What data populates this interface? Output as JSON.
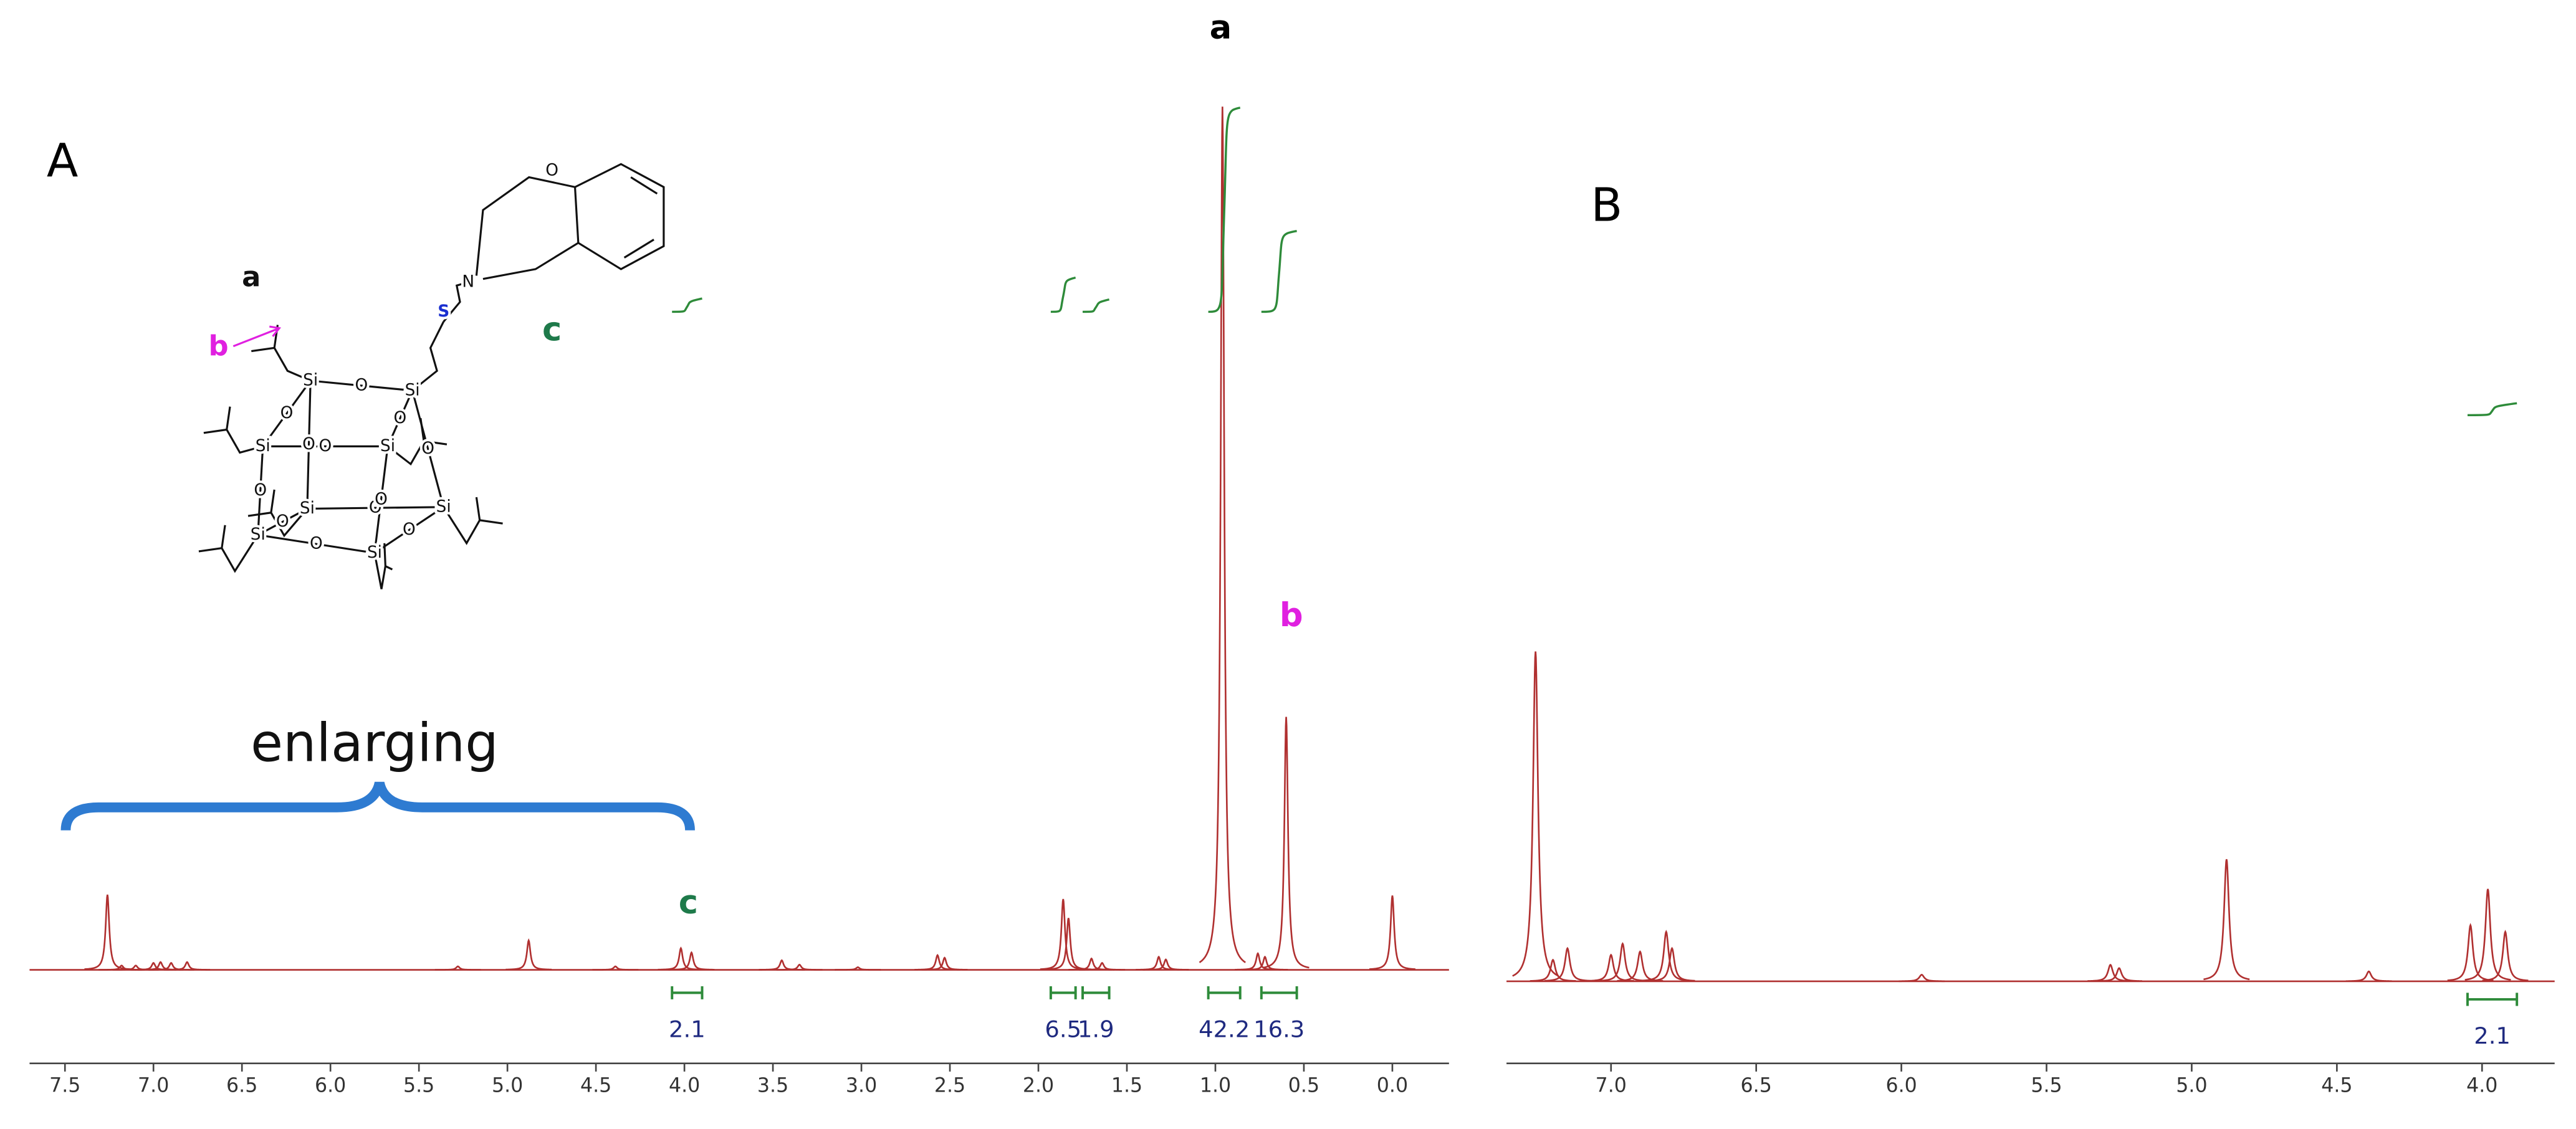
{
  "chart_data": [
    {
      "type": "spectrum",
      "panel_label": "A",
      "color": "#b03030",
      "x": [
        7.26,
        7.18,
        7.1,
        7.0,
        6.96,
        6.9,
        6.81,
        5.28,
        4.88,
        4.39,
        4.02,
        3.96,
        3.45,
        3.35,
        3.02,
        2.57,
        2.53,
        1.86,
        1.83,
        1.7,
        1.64,
        1.32,
        1.28,
        0.96,
        0.76,
        0.72,
        0.6,
        0.0
      ],
      "values": [
        8.7,
        0.5,
        0.5,
        0.8,
        0.9,
        0.8,
        0.9,
        0.4,
        3.4,
        0.4,
        2.5,
        2.0,
        1.1,
        0.6,
        0.3,
        1.7,
        1.4,
        8.2,
        6.0,
        1.3,
        0.8,
        1.5,
        1.2,
        100,
        1.9,
        1.5,
        29.3,
        8.6
      ],
      "xlim": [
        7.7,
        -0.32
      ],
      "xticks": [
        7.5,
        {
          "value": 7,
          "label": "7.0"
        },
        6.5,
        {
          "value": 6,
          "label": "6.0"
        },
        5.5,
        {
          "value": 5,
          "label": "5.0"
        },
        4.5,
        {
          "value": 4,
          "label": "4.0"
        },
        3.5,
        {
          "value": 3,
          "label": "3.0"
        },
        2.5,
        {
          "value": 2,
          "label": "2.0"
        },
        1.5,
        {
          "value": 1,
          "label": "1.0"
        },
        0.5,
        {
          "value": 0,
          "label": "0.0"
        }
      ],
      "ylim": [
        0,
        100
      ],
      "integrals": {
        "color": "#2e8b3a",
        "x": [
          [
            4.07,
            3.9
          ],
          [
            1.93,
            1.79
          ],
          [
            1.75,
            1.6
          ],
          [
            1.04,
            0.86
          ],
          [
            0.74,
            0.54
          ]
        ],
        "values": [
          2.1,
          6.5,
          1.9,
          42.2,
          16.3
        ]
      },
      "peak_labels": [
        "a",
        "b",
        "c"
      ],
      "enlarge_label": "enlarging"
    },
    {
      "type": "spectrum",
      "panel_label": "B",
      "color": "#b03030",
      "x": [
        7.26,
        7.2,
        7.15,
        7.0,
        6.96,
        6.9,
        6.81,
        6.79,
        5.93,
        5.28,
        5.25,
        4.88,
        4.39,
        4.04,
        3.98,
        3.92
      ],
      "values": [
        100,
        6.5,
        10,
        8,
        11.4,
        9,
        15,
        10,
        2,
        5,
        4,
        37,
        3,
        17,
        28,
        15
      ],
      "xlim": [
        7.36,
        3.75
      ],
      "xticks": [
        {
          "value": 7,
          "label": "7.0"
        },
        6.5,
        {
          "value": 6,
          "label": "6.0"
        },
        5.5,
        {
          "value": 5,
          "label": "5.0"
        },
        4.5,
        {
          "value": 4,
          "label": "4.0"
        }
      ],
      "ylim": [
        0,
        100
      ],
      "integrals": {
        "color": "#2e8b3a",
        "x": [
          [
            4.05,
            3.88
          ]
        ],
        "values": [
          2.1
        ]
      }
    }
  ],
  "structure": {
    "atoms": [
      "Si",
      "Si",
      "Si",
      "Si",
      "Si",
      "Si",
      "Si",
      "Si",
      "O",
      "O",
      "O",
      "O",
      "O",
      "O",
      "O",
      "O",
      "O",
      "O",
      "O",
      "O",
      "S",
      "N",
      "O"
    ],
    "labels": [
      "a",
      "b",
      "c"
    ]
  }
}
